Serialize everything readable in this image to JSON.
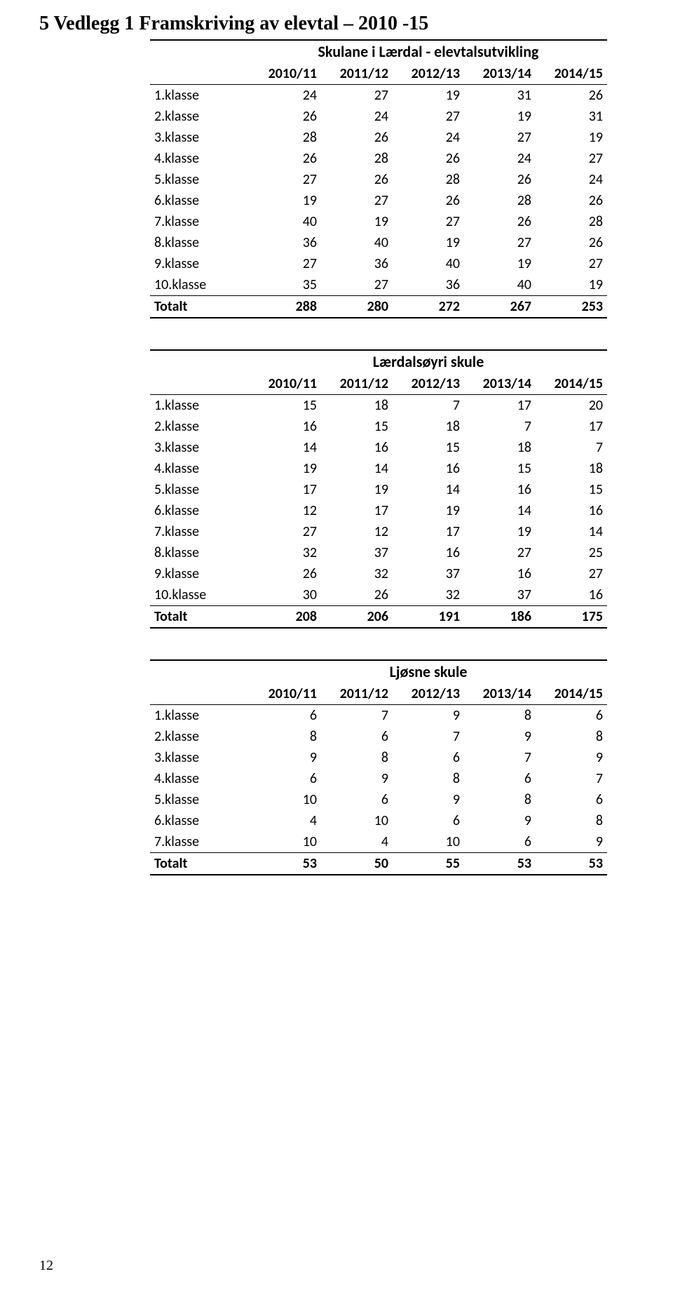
{
  "heading": "5  Vedlegg 1 Framskriving av elevtal – 2010 -15",
  "page_number": "12",
  "year_headers": [
    "2010/11",
    "2011/12",
    "2012/13",
    "2013/14",
    "2014/15"
  ],
  "total_label": "Totalt",
  "tables": {
    "all": {
      "title": "Skulane i Lærdal - elevtalsutvikling",
      "rows": [
        {
          "label": "1.klasse",
          "v": [
            24,
            27,
            19,
            31,
            26
          ]
        },
        {
          "label": "2.klasse",
          "v": [
            26,
            24,
            27,
            19,
            31
          ]
        },
        {
          "label": "3.klasse",
          "v": [
            28,
            26,
            24,
            27,
            19
          ]
        },
        {
          "label": "4.klasse",
          "v": [
            26,
            28,
            26,
            24,
            27
          ]
        },
        {
          "label": "5.klasse",
          "v": [
            27,
            26,
            28,
            26,
            24
          ]
        },
        {
          "label": "6.klasse",
          "v": [
            19,
            27,
            26,
            28,
            26
          ]
        },
        {
          "label": "7.klasse",
          "v": [
            40,
            19,
            27,
            26,
            28
          ]
        },
        {
          "label": "8.klasse",
          "v": [
            36,
            40,
            19,
            27,
            26
          ]
        },
        {
          "label": "9.klasse",
          "v": [
            27,
            36,
            40,
            19,
            27
          ]
        },
        {
          "label": "10.klasse",
          "v": [
            35,
            27,
            36,
            40,
            19
          ]
        }
      ],
      "total": [
        288,
        280,
        272,
        267,
        253
      ]
    },
    "laerdal": {
      "title": "Lærdalsøyri skule",
      "rows": [
        {
          "label": "1.klasse",
          "v": [
            15,
            18,
            7,
            17,
            20
          ]
        },
        {
          "label": "2.klasse",
          "v": [
            16,
            15,
            18,
            7,
            17
          ]
        },
        {
          "label": "3.klasse",
          "v": [
            14,
            16,
            15,
            18,
            7
          ]
        },
        {
          "label": "4.klasse",
          "v": [
            19,
            14,
            16,
            15,
            18
          ]
        },
        {
          "label": "5.klasse",
          "v": [
            17,
            19,
            14,
            16,
            15
          ]
        },
        {
          "label": "6.klasse",
          "v": [
            12,
            17,
            19,
            14,
            16
          ]
        },
        {
          "label": "7.klasse",
          "v": [
            27,
            12,
            17,
            19,
            14
          ]
        },
        {
          "label": "8.klasse",
          "v": [
            32,
            37,
            16,
            27,
            25
          ]
        },
        {
          "label": "9.klasse",
          "v": [
            26,
            32,
            37,
            16,
            27
          ]
        },
        {
          "label": "10.klasse",
          "v": [
            30,
            26,
            32,
            37,
            16
          ]
        }
      ],
      "total": [
        208,
        206,
        191,
        186,
        175
      ]
    },
    "ljosne": {
      "title": "Ljøsne skule",
      "rows": [
        {
          "label": "1.klasse",
          "v": [
            6,
            7,
            9,
            8,
            6
          ]
        },
        {
          "label": "2.klasse",
          "v": [
            8,
            6,
            7,
            9,
            8
          ]
        },
        {
          "label": "3.klasse",
          "v": [
            9,
            8,
            6,
            7,
            9
          ]
        },
        {
          "label": "4.klasse",
          "v": [
            6,
            9,
            8,
            6,
            7
          ]
        },
        {
          "label": "5.klasse",
          "v": [
            10,
            6,
            9,
            8,
            6
          ]
        },
        {
          "label": "6.klasse",
          "v": [
            4,
            10,
            6,
            9,
            8
          ]
        },
        {
          "label": "7.klasse",
          "v": [
            10,
            4,
            10,
            6,
            9
          ]
        }
      ],
      "total": [
        53,
        50,
        55,
        53,
        53
      ]
    }
  }
}
